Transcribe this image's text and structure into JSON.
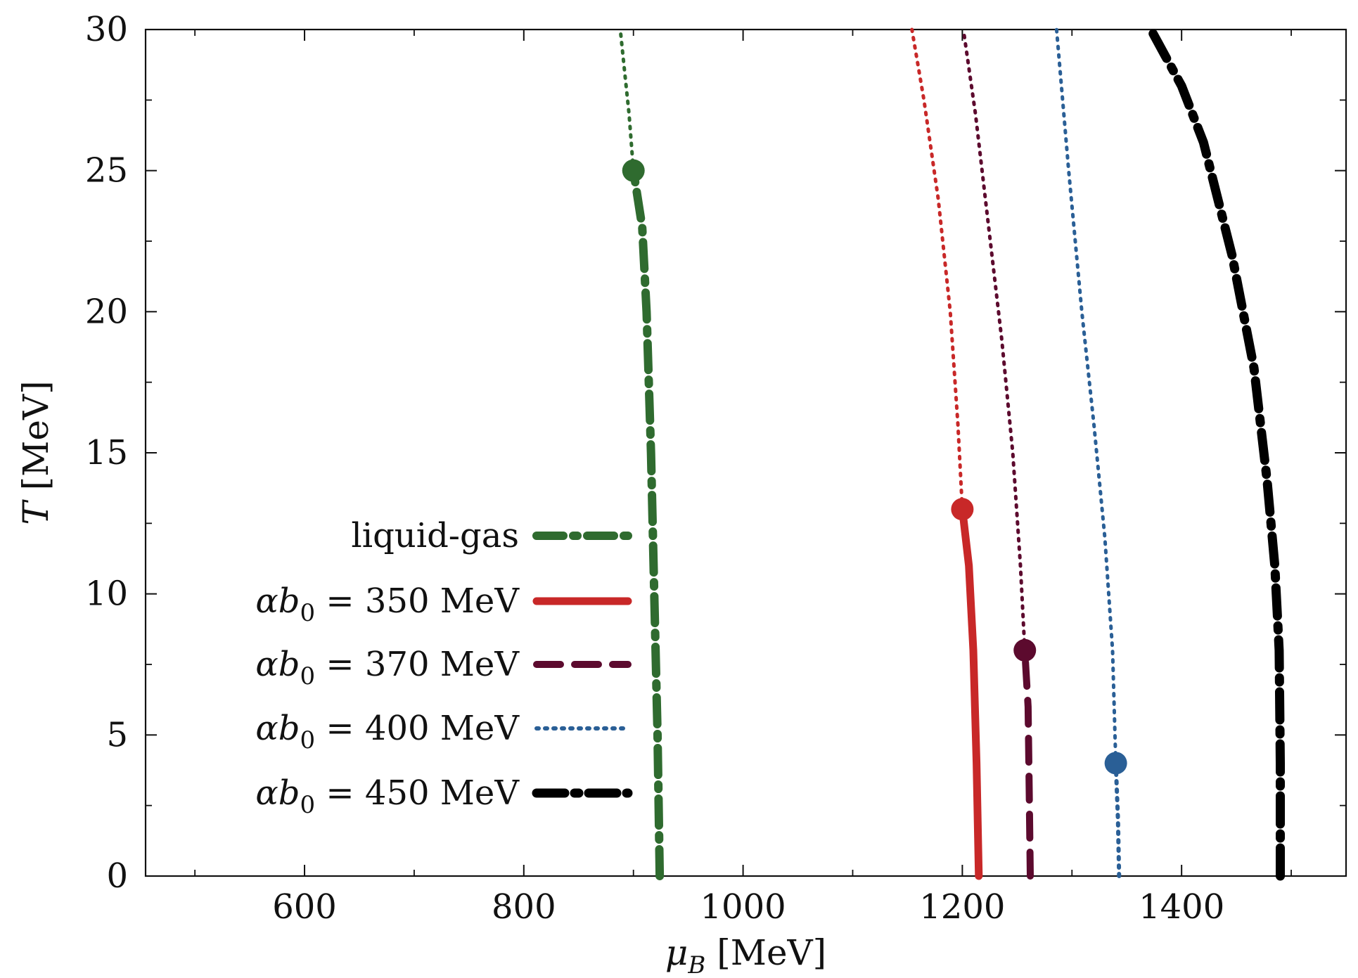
{
  "chart_data": {
    "type": "line",
    "title": "",
    "xlabel": {
      "symbol": "μ",
      "sub": "B",
      "unit": "[MeV]"
    },
    "ylabel": {
      "symbol": "T",
      "unit": "[MeV]"
    },
    "xlim": [
      455,
      1550
    ],
    "ylim": [
      0,
      30
    ],
    "xticks": [
      600,
      800,
      1000,
      1200,
      1400
    ],
    "yticks": [
      0,
      5,
      10,
      15,
      20,
      25,
      30
    ],
    "xtick_labels": [
      "600",
      "800",
      "1000",
      "1200",
      "1400"
    ],
    "ytick_labels": [
      "0",
      "5",
      "10",
      "15",
      "20",
      "25",
      "30"
    ],
    "xminor": [
      500,
      700,
      900,
      1100,
      1300,
      1500
    ],
    "yminor": [
      2.5,
      7.5,
      12.5,
      17.5,
      22.5,
      27.5
    ],
    "legend_position": "center-left",
    "series": [
      {
        "name": "liquid-gas",
        "label_parts": {
          "plain": "liquid-gas"
        },
        "color": "#2f6b2f",
        "style": "dashdot",
        "first_order": [
          [
            924,
            0
          ],
          [
            922,
            5
          ],
          [
            919,
            10
          ],
          [
            916,
            15
          ],
          [
            912,
            20
          ],
          [
            908,
            23
          ],
          [
            900,
            25
          ]
        ],
        "crossover": [
          [
            900,
            25
          ],
          [
            896,
            27
          ],
          [
            892,
            28.5
          ],
          [
            888,
            30
          ]
        ],
        "critical_point": [
          900,
          25
        ]
      },
      {
        "name": "αb0 = 350 MeV",
        "label_parts": {
          "prefix": "αb",
          "sub": "0",
          "suffix": " = 350 MeV"
        },
        "color": "#c82828",
        "style": "solid",
        "first_order": [
          [
            1215,
            0
          ],
          [
            1213,
            4
          ],
          [
            1210,
            8
          ],
          [
            1206,
            11
          ],
          [
            1200,
            13
          ]
        ],
        "crossover": [
          [
            1200,
            13
          ],
          [
            1196,
            16
          ],
          [
            1189,
            20
          ],
          [
            1178,
            24
          ],
          [
            1165,
            27.5
          ],
          [
            1154,
            30
          ]
        ],
        "critical_point": [
          1200,
          13
        ]
      },
      {
        "name": "αb0 = 370 MeV",
        "label_parts": {
          "prefix": "αb",
          "sub": "0",
          "suffix": " = 370 MeV"
        },
        "color": "#5c0a2e",
        "style": "dashed",
        "first_order": [
          [
            1262,
            0
          ],
          [
            1261,
            3
          ],
          [
            1260,
            6
          ],
          [
            1257,
            8
          ]
        ],
        "crossover": [
          [
            1257,
            8
          ],
          [
            1253,
            11
          ],
          [
            1246,
            15
          ],
          [
            1236,
            19
          ],
          [
            1224,
            23
          ],
          [
            1212,
            27
          ],
          [
            1201,
            30
          ]
        ],
        "critical_point": [
          1257,
          8
        ]
      },
      {
        "name": "αb0 = 400 MeV",
        "label_parts": {
          "prefix": "αb",
          "sub": "0",
          "suffix": " = 400 MeV"
        },
        "color": "#2a5f96",
        "style": "dotted",
        "first_order": [
          [
            1343,
            0
          ],
          [
            1342,
            2
          ],
          [
            1340,
            4
          ]
        ],
        "crossover": [
          [
            1340,
            4
          ],
          [
            1337,
            8
          ],
          [
            1330,
            12
          ],
          [
            1320,
            16
          ],
          [
            1309,
            20
          ],
          [
            1297,
            25
          ],
          [
            1286,
            30
          ]
        ],
        "critical_point": [
          1340,
          4
        ]
      },
      {
        "name": "αb0 = 450 MeV",
        "label_parts": {
          "prefix": "αb",
          "sub": "0",
          "suffix": " = 450 MeV"
        },
        "color": "#000000",
        "style": "dashdot-heavy",
        "first_order": [
          [
            1490,
            0
          ],
          [
            1490,
            4
          ],
          [
            1489,
            8
          ],
          [
            1485,
            11
          ],
          [
            1478,
            14
          ],
          [
            1466,
            18
          ],
          [
            1446,
            22
          ],
          [
            1420,
            26
          ],
          [
            1400,
            28
          ],
          [
            1372,
            30
          ]
        ],
        "crossover": [],
        "critical_point": null
      }
    ]
  }
}
